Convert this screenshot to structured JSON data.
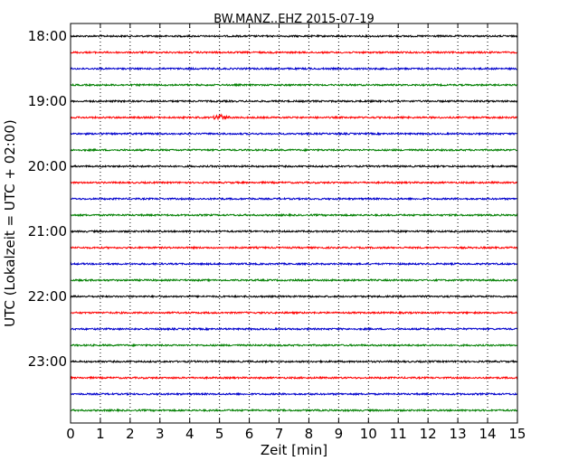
{
  "chart_data": {
    "type": "line",
    "title": "BW.MANZ..EHZ 2015-07-19",
    "xlabel": "Zeit  [min]",
    "ylabel": "UTC (Lokalzeit = UTC + 02:00)",
    "xlim": [
      0,
      15
    ],
    "x_ticks": [
      "0",
      "1",
      "2",
      "3",
      "4",
      "5",
      "6",
      "7",
      "8",
      "9",
      "10",
      "11",
      "12",
      "13",
      "14",
      "15"
    ],
    "y_ticks": [
      "18:00",
      "19:00",
      "20:00",
      "21:00",
      "22:00",
      "23:00"
    ],
    "grid": "vertical dotted at each minute",
    "trace_colors": [
      "#000000",
      "#ff0000",
      "#0000cc",
      "#007f00"
    ],
    "traces": [
      {
        "start": "18:00",
        "color": "#000000"
      },
      {
        "start": "18:15",
        "color": "#ff0000"
      },
      {
        "start": "18:30",
        "color": "#0000cc"
      },
      {
        "start": "18:45",
        "color": "#007f00"
      },
      {
        "start": "19:00",
        "color": "#000000"
      },
      {
        "start": "19:15",
        "color": "#ff0000",
        "event": {
          "start_min": 4.75,
          "peak_min": 5.0,
          "end_min": 5.45
        }
      },
      {
        "start": "19:30",
        "color": "#0000cc"
      },
      {
        "start": "19:45",
        "color": "#007f00"
      },
      {
        "start": "20:00",
        "color": "#000000"
      },
      {
        "start": "20:15",
        "color": "#ff0000"
      },
      {
        "start": "20:30",
        "color": "#0000cc"
      },
      {
        "start": "20:45",
        "color": "#007f00"
      },
      {
        "start": "21:00",
        "color": "#000000"
      },
      {
        "start": "21:15",
        "color": "#ff0000"
      },
      {
        "start": "21:30",
        "color": "#0000cc"
      },
      {
        "start": "21:45",
        "color": "#007f00"
      },
      {
        "start": "22:00",
        "color": "#000000"
      },
      {
        "start": "22:15",
        "color": "#ff0000"
      },
      {
        "start": "22:30",
        "color": "#0000cc"
      },
      {
        "start": "22:45",
        "color": "#007f00"
      },
      {
        "start": "23:00",
        "color": "#000000"
      },
      {
        "start": "23:15",
        "color": "#ff0000"
      },
      {
        "start": "23:30",
        "color": "#0000cc"
      },
      {
        "start": "23:45",
        "color": "#007f00"
      }
    ]
  }
}
